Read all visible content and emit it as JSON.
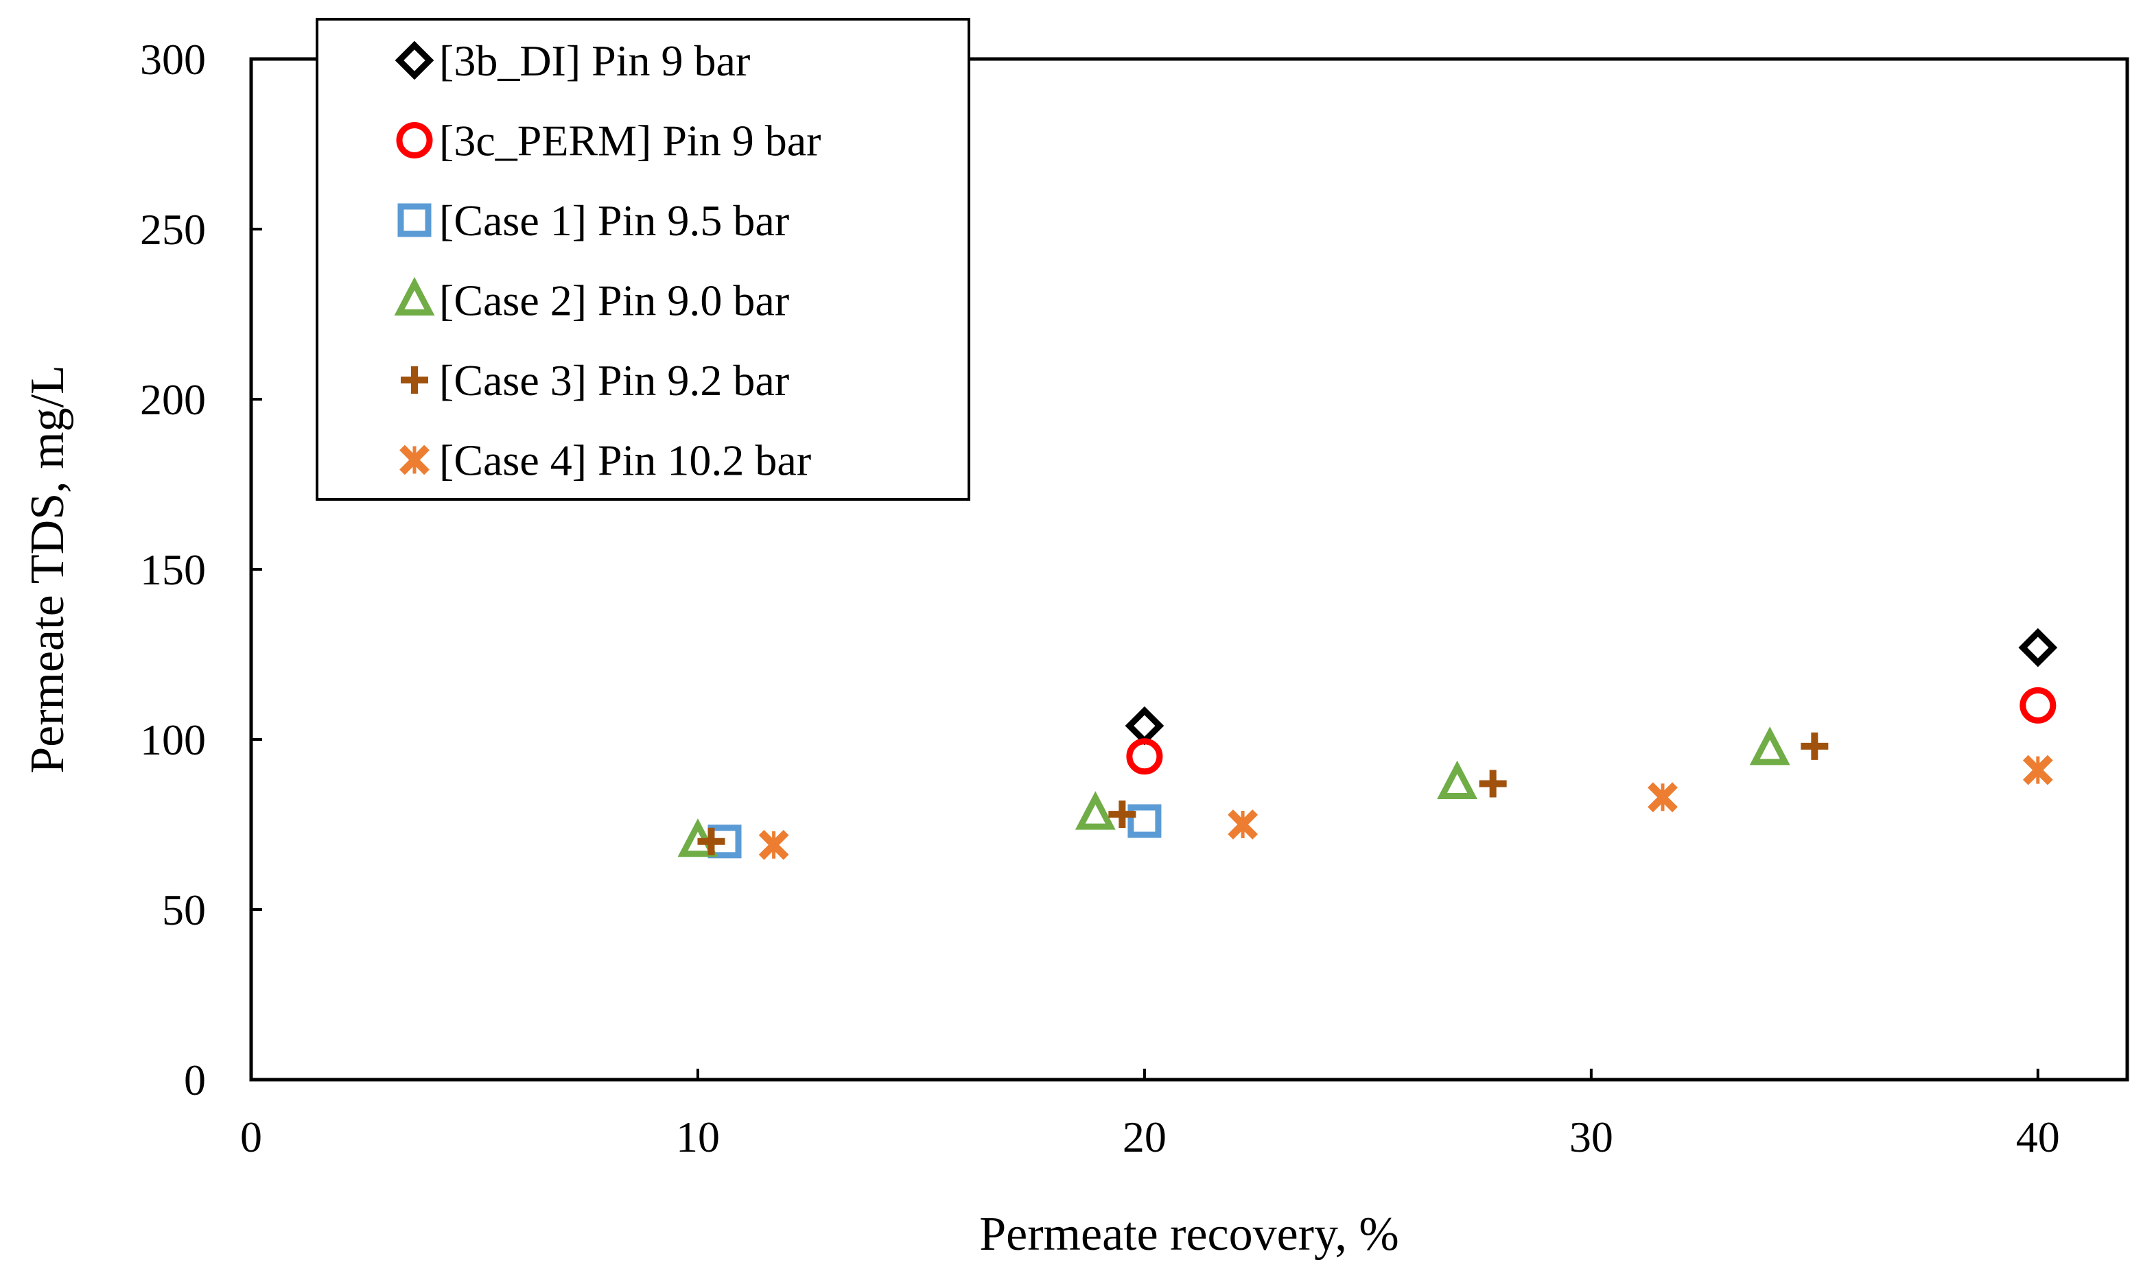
{
  "chart_data": {
    "type": "scatter",
    "title": "",
    "xlabel": "Permeate recovery, %",
    "ylabel": "Permeate TDS, mg/L",
    "xlim": [
      0,
      42
    ],
    "ylim": [
      0,
      300
    ],
    "xticks": [
      0,
      10,
      20,
      30,
      40
    ],
    "yticks": [
      0,
      50,
      100,
      150,
      200,
      250,
      300
    ],
    "grid": false,
    "legend_position": "top-left",
    "series": [
      {
        "name": "[3b_DI] Pin 9 bar",
        "marker": "diamond",
        "color": "#000000",
        "points": [
          {
            "x": 20,
            "y": 104
          },
          {
            "x": 40,
            "y": 127
          }
        ]
      },
      {
        "name": "[3c_PERM] Pin 9 bar",
        "marker": "circle",
        "color": "#ff0000",
        "points": [
          {
            "x": 20,
            "y": 95
          },
          {
            "x": 40,
            "y": 110
          }
        ]
      },
      {
        "name": "[Case 1] Pin 9.5 bar",
        "marker": "square",
        "color": "#5b9bd5",
        "points": [
          {
            "x": 10.6,
            "y": 70
          },
          {
            "x": 20,
            "y": 76
          }
        ]
      },
      {
        "name": "[Case 2] Pin 9.0 bar",
        "marker": "triangle",
        "color": "#70ad47",
        "points": [
          {
            "x": 10,
            "y": 70
          },
          {
            "x": 18.9,
            "y": 78
          },
          {
            "x": 27,
            "y": 87
          },
          {
            "x": 34,
            "y": 97
          }
        ]
      },
      {
        "name": "[Case 3] Pin 9.2 bar",
        "marker": "plus",
        "color": "#a0520d",
        "points": [
          {
            "x": 10.3,
            "y": 70
          },
          {
            "x": 19.5,
            "y": 78
          },
          {
            "x": 27.8,
            "y": 87
          },
          {
            "x": 35,
            "y": 98
          }
        ]
      },
      {
        "name": "[Case 4] Pin 10.2 bar",
        "marker": "cross",
        "color": "#ed7d31",
        "points": [
          {
            "x": 11.7,
            "y": 69
          },
          {
            "x": 22.2,
            "y": 75
          },
          {
            "x": 31.6,
            "y": 83
          },
          {
            "x": 40,
            "y": 91
          }
        ]
      }
    ]
  }
}
